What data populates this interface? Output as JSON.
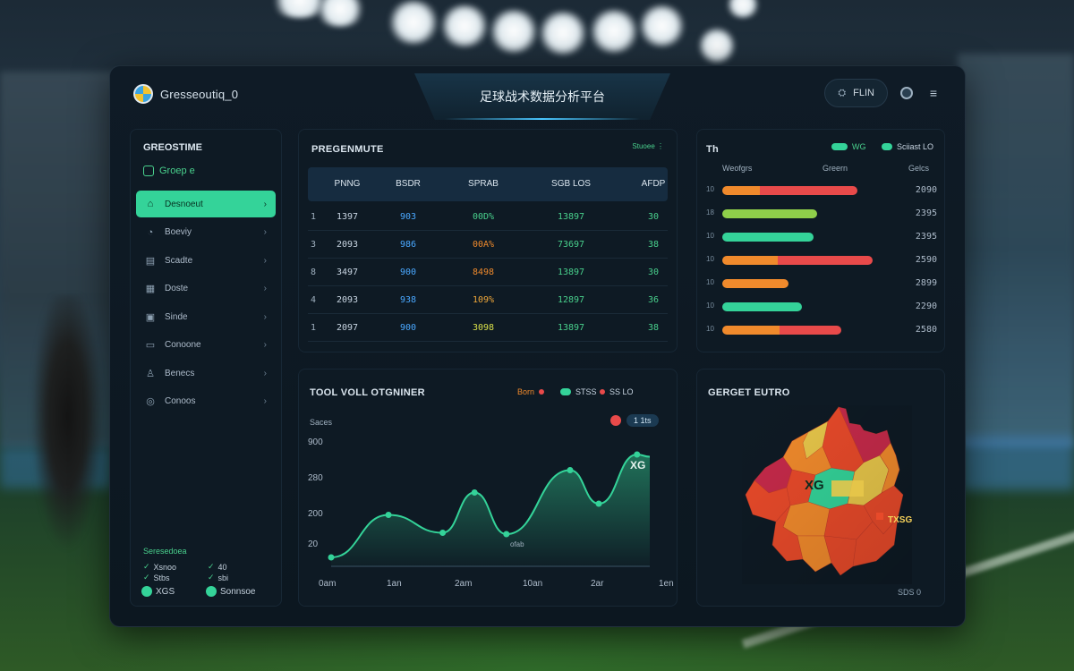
{
  "app": {
    "brand": "Gresseoutiq_0",
    "title": "足球战术数据分析平台",
    "top_button_label": "FLIN",
    "colors": {
      "accent": "#34d399",
      "orange": "#f08a2c",
      "red": "#e84a4a",
      "blue": "#4aa8ff",
      "panel": "#0e1a24"
    }
  },
  "sidebar": {
    "header": "GREOSTIME",
    "sub_label": "Groep e",
    "items": [
      {
        "label": "Desnoeut",
        "icon": "home-icon",
        "active": true
      },
      {
        "label": "Boeviy",
        "icon": "chart-icon",
        "active": false
      },
      {
        "label": "Scadte",
        "icon": "calendar-icon",
        "active": false
      },
      {
        "label": "Doste",
        "icon": "grid-icon",
        "active": false
      },
      {
        "label": "Sinde",
        "icon": "image-icon",
        "active": false
      },
      {
        "label": "Conoone",
        "icon": "folder-icon",
        "active": false
      },
      {
        "label": "Benecs",
        "icon": "user-icon",
        "active": false
      },
      {
        "label": "Conoos",
        "icon": "settings-icon",
        "active": false
      }
    ],
    "legend_title": "Seresedoea",
    "legend_rows": [
      {
        "left": "Xsnoo",
        "right": "40"
      },
      {
        "left": "Stbs",
        "right": "sbi"
      }
    ],
    "footer": [
      {
        "label": "XGS"
      },
      {
        "label": "Sonnsoe"
      }
    ]
  },
  "table_panel": {
    "title": "PREGENMUTE",
    "legend": "Stuoee",
    "headers": [
      "PNNG",
      "BSDR",
      "SPRAB",
      "SGB LOS",
      "AFDP"
    ],
    "rows": [
      {
        "rank": "1",
        "a": "1397",
        "b": "903",
        "c": "00D%",
        "c_color": "#49d18d",
        "d": "13897",
        "e": "30"
      },
      {
        "rank": "3",
        "a": "2093",
        "b": "986",
        "c": "00A%",
        "c_color": "#f08a2c",
        "d": "73697",
        "e": "38"
      },
      {
        "rank": "8",
        "a": "3497",
        "b": "900",
        "c": "8498",
        "c_color": "#f08a2c",
        "d": "13897",
        "e": "30"
      },
      {
        "rank": "4",
        "a": "2093",
        "b": "938",
        "c": "109%",
        "c_color": "#f0a83a",
        "d": "12897",
        "e": "36"
      },
      {
        "rank": "1",
        "a": "2097",
        "b": "900",
        "c": "3098",
        "c_color": "#d9e04a",
        "d": "13897",
        "e": "38"
      }
    ]
  },
  "bars_panel": {
    "title": "Th",
    "legend": [
      {
        "label": "WG",
        "color": "#34d399"
      },
      {
        "label": "Sciiast LO",
        "color": "#34d399"
      }
    ],
    "col_left": "Weofgrs",
    "col_mid": "Greern",
    "col_right": "Gelcs",
    "rows": [
      {
        "num": "10",
        "segments": [
          {
            "frac": 0.28,
            "color": "#f08a2c"
          },
          {
            "frac": 0.72,
            "color": "#e84a4a"
          }
        ],
        "total": 0.9,
        "value": "2090"
      },
      {
        "num": "18",
        "segments": [
          {
            "frac": 1.0,
            "color": "#8fcf4a"
          }
        ],
        "total": 0.63,
        "value": "2395"
      },
      {
        "num": "10",
        "segments": [
          {
            "frac": 1.0,
            "color": "#34d399"
          }
        ],
        "total": 0.61,
        "value": "2395"
      },
      {
        "num": "10",
        "segments": [
          {
            "frac": 0.37,
            "color": "#f08a2c"
          },
          {
            "frac": 0.63,
            "color": "#e84a4a"
          }
        ],
        "total": 1.0,
        "value": "2590"
      },
      {
        "num": "10",
        "segments": [
          {
            "frac": 1.0,
            "color": "#f08a2c"
          }
        ],
        "total": 0.44,
        "value": "2899"
      },
      {
        "num": "10",
        "segments": [
          {
            "frac": 1.0,
            "color": "#34d399"
          }
        ],
        "total": 0.53,
        "value": "2290"
      },
      {
        "num": "10",
        "segments": [
          {
            "frac": 0.48,
            "color": "#f08a2c"
          },
          {
            "frac": 0.52,
            "color": "#e84a4a"
          }
        ],
        "total": 0.79,
        "value": "2580"
      }
    ]
  },
  "line_panel": {
    "title": "TOOL VOLL OTGNINER",
    "legend": [
      {
        "label": "Born",
        "color": "#e84a4a"
      },
      {
        "label": "STSS",
        "color": "#34d399"
      },
      {
        "label": "SS LO",
        "color": "#e84a4a"
      }
    ],
    "ylabel": "Saces",
    "badge": "1 1ts",
    "annotation_peak": "XG",
    "annotation_mid": "ofab"
  },
  "heat_panel": {
    "title": "GERGET EUTRO",
    "label_center": "XG",
    "label_right": "TXSG",
    "footer": "SDS 0"
  },
  "chart_data": {
    "type": "area",
    "x": [
      "0am",
      "1an",
      "2am",
      "10an",
      "2ar",
      "1en"
    ],
    "y_ticks": [
      20,
      200,
      280,
      900
    ],
    "ylim": [
      0,
      900
    ],
    "series": [
      {
        "name": "STSS",
        "points": [
          [
            0,
            20
          ],
          [
            0.18,
            115
          ],
          [
            0.35,
            75
          ],
          [
            0.45,
            165
          ],
          [
            0.55,
            72
          ],
          [
            0.75,
            215
          ],
          [
            0.84,
            140
          ],
          [
            0.96,
            250
          ],
          [
            1.0,
            245
          ]
        ]
      }
    ]
  }
}
